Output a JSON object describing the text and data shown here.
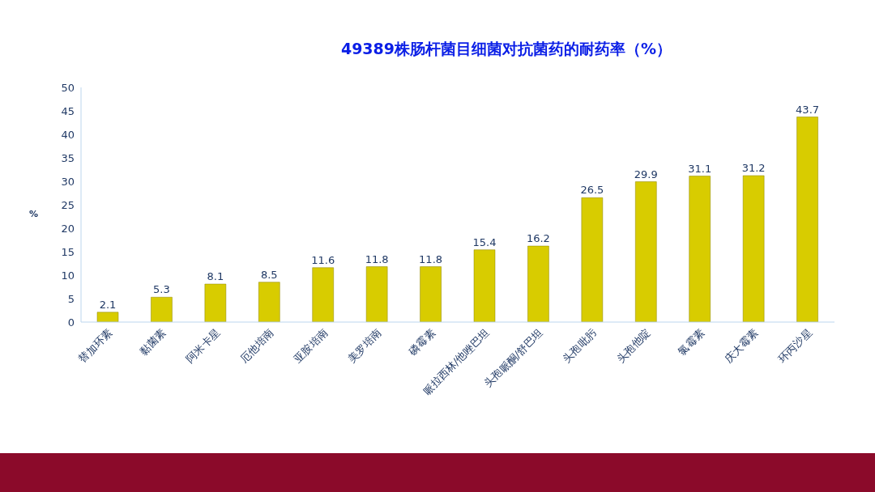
{
  "chart_data": {
    "type": "bar",
    "title": "49389株肠杆菌目细菌对抗菌药的耐药率（%）",
    "ylabel": "%",
    "categories": [
      "替加环素",
      "黏菌素",
      "阿米卡星",
      "厄他培南",
      "亚胺培南",
      "美罗培南",
      "磷霉素",
      "哌拉西林/他唑巴坦",
      "头孢哌酮/舒巴坦",
      "头孢吡肟",
      "头孢他啶",
      "氯霉素",
      "庆大霉素",
      "环丙沙星"
    ],
    "values": [
      2.1,
      5.3,
      8.1,
      8.5,
      11.6,
      11.8,
      11.8,
      15.4,
      16.2,
      26.5,
      29.9,
      31.1,
      31.2,
      43.7
    ],
    "color": "#d8cc00",
    "ylim": [
      0,
      50
    ],
    "yticks": [
      0,
      5,
      10,
      15,
      20,
      25,
      30,
      35,
      40,
      45,
      50
    ],
    "data_labels": true,
    "grid": false
  }
}
